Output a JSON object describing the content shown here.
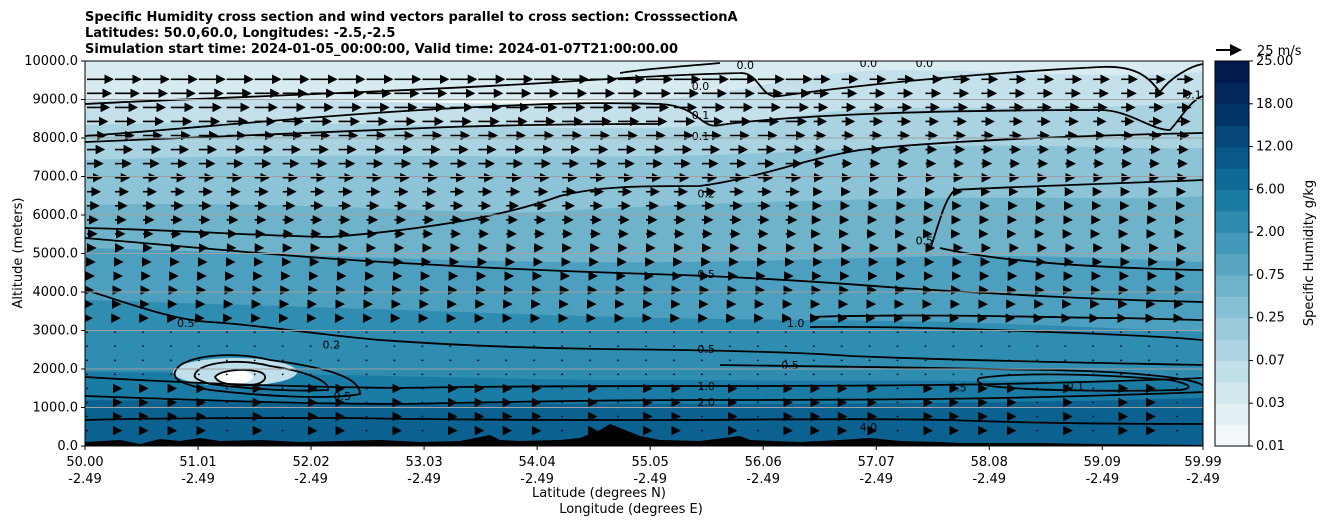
{
  "chart_data": {
    "type": "contour",
    "title": {
      "line1": "Specific Humidity cross section and wind vectors parallel to cross section: CrosssectionA",
      "line2": "Latitudes: 50.0,60.0, Longitudes: -2.5,-2.5",
      "line3": "Simulation start time: 2024-01-05_00:00:00, Valid time: 2024-01-07T21:00:00.00"
    },
    "ylabel": "Altitude (meters)",
    "xlabel_lat": "Latitude (degrees N)",
    "xlabel_lon": "Longitude (degrees E)",
    "ylim": [
      0,
      10000
    ],
    "xlim": [
      50.0,
      59.99
    ],
    "yticks": [
      "0.0",
      "1000.0",
      "2000.0",
      "3000.0",
      "4000.0",
      "5000.0",
      "6000.0",
      "7000.0",
      "8000.0",
      "9000.0",
      "10000.0"
    ],
    "xticks_lat": [
      "50.00",
      "51.01",
      "52.02",
      "53.03",
      "54.04",
      "55.05",
      "56.06",
      "57.07",
      "58.08",
      "59.09",
      "59.99"
    ],
    "xticks_lon": [
      "-2.49",
      "-2.49",
      "-2.49",
      "-2.49",
      "-2.49",
      "-2.49",
      "-2.49",
      "-2.49",
      "-2.49",
      "-2.49",
      "-2.49"
    ],
    "colorbar": {
      "label": "Specific Humidity g/kg",
      "ticks": [
        "0.01",
        "0.03",
        "0.07",
        "0.25",
        "0.75",
        "2.00",
        "6.00",
        "12.00",
        "18.00",
        "25.00"
      ],
      "colors": [
        "#f2f8fa",
        "#e3f0f4",
        "#d2e8ef",
        "#c1e0ea",
        "#aed5e3",
        "#9acbdb",
        "#85c0d4",
        "#6fb3cb",
        "#58a6c2",
        "#4299b9",
        "#2d8bb0",
        "#1a7ba4",
        "#0e6b98",
        "#08598a",
        "#06487a",
        "#04356a",
        "#03265b",
        "#021a4e"
      ]
    },
    "quiver_key": {
      "label": "25 m/s"
    },
    "contour_levels": [
      "0.0",
      "0.1",
      "0.2",
      "0.5",
      "1.0",
      "2.0",
      "4.0"
    ],
    "contour_labels": [
      {
        "text": "0.0",
        "lat": 55.5,
        "alt": 9350
      },
      {
        "text": "0.0",
        "lat": 55.9,
        "alt": 9900
      },
      {
        "text": "0.0",
        "lat": 57.0,
        "alt": 9950
      },
      {
        "text": "0.0",
        "lat": 57.5,
        "alt": 9950
      },
      {
        "text": "0.1",
        "lat": 55.5,
        "alt": 8600
      },
      {
        "text": "0.1",
        "lat": 55.5,
        "alt": 8050
      },
      {
        "text": "0.1",
        "lat": 59.9,
        "alt": 9130
      },
      {
        "text": "0.2",
        "lat": 55.55,
        "alt": 6560
      },
      {
        "text": "0.5",
        "lat": 55.55,
        "alt": 4470
      },
      {
        "text": "0.5",
        "lat": 55.55,
        "alt": 2520
      },
      {
        "text": "0.5",
        "lat": 50.9,
        "alt": 3200
      },
      {
        "text": "0.5",
        "lat": 57.5,
        "alt": 5340
      },
      {
        "text": "1.0",
        "lat": 55.55,
        "alt": 1560
      },
      {
        "text": "2.0",
        "lat": 55.55,
        "alt": 1140
      },
      {
        "text": "0.1",
        "lat": 58.85,
        "alt": 1560
      },
      {
        "text": "0.5",
        "lat": 57.8,
        "alt": 1520
      },
      {
        "text": "0.5",
        "lat": 52.3,
        "alt": 1300
      },
      {
        "text": "0.2",
        "lat": 52.2,
        "alt": 2630
      },
      {
        "text": "1.0",
        "lat": 56.35,
        "alt": 3200
      },
      {
        "text": "0.5",
        "lat": 56.3,
        "alt": 2100
      },
      {
        "text": "4.0",
        "lat": 57.0,
        "alt": 500
      }
    ]
  }
}
